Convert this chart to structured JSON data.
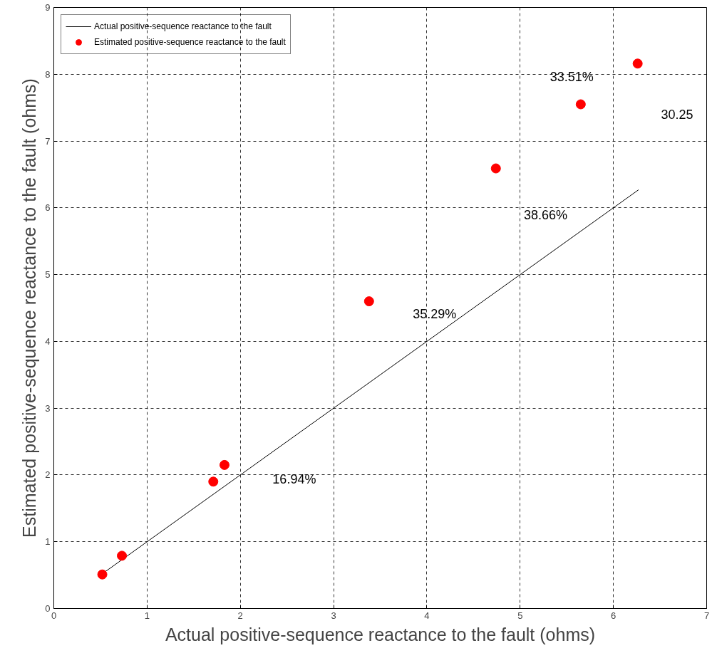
{
  "chart_data": {
    "type": "scatter",
    "xlabel": "Actual positive-sequence reactance to the fault (ohms)",
    "ylabel": "Estimated positive-sequence reactance to the fault (ohms)",
    "xlim": [
      0,
      7
    ],
    "ylim": [
      0,
      9
    ],
    "xticks": [
      0,
      1,
      2,
      3,
      4,
      5,
      6,
      7
    ],
    "yticks": [
      0,
      1,
      2,
      3,
      4,
      5,
      6,
      7,
      8,
      9
    ],
    "grid": true,
    "legend": "top left",
    "series": [
      {
        "name": "Actual positive-sequence reactance to the fault",
        "type": "line",
        "color": "#000000",
        "marker": "none",
        "line_style": "solid",
        "x": [
          0.5,
          6.27
        ],
        "values": [
          0.5,
          6.27
        ]
      },
      {
        "name": "Estimated positive-sequence reactance to the fault",
        "color": "#ff0000",
        "marker": "circle",
        "x": [
          0.52,
          0.73,
          1.71,
          1.83,
          3.38,
          4.74,
          5.65,
          6.26
        ],
        "values": [
          0.51,
          0.79,
          1.9,
          2.15,
          4.6,
          6.59,
          7.55,
          8.16
        ]
      }
    ],
    "annotations": [
      "16.94%",
      "35.29%",
      "38.66%",
      "33.51%",
      "30.25"
    ]
  }
}
